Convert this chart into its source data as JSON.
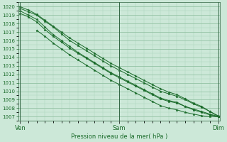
{
  "title": "Pression niveau de la mer( hPa )",
  "xlabel_ticks": [
    "Ven",
    "Sam",
    "Dim"
  ],
  "xlabel_tick_positions": [
    0,
    1,
    2
  ],
  "ylim": [
    1006.5,
    1020.5
  ],
  "yticks": [
    1007,
    1008,
    1009,
    1010,
    1011,
    1012,
    1013,
    1014,
    1015,
    1016,
    1017,
    1018,
    1019,
    1020
  ],
  "bg_color": "#cce8d8",
  "grid_major_color": "#88bb99",
  "grid_minor_color": "#aad4bb",
  "line_color": "#1a6b2a",
  "spine_color": "#336644",
  "figsize": [
    3.2,
    2.0
  ],
  "dpi": 100,
  "series": [
    {
      "x": [
        0.0,
        0.083,
        0.167,
        0.25,
        0.333,
        0.417,
        0.5,
        0.583,
        0.667,
        0.75,
        0.833,
        0.917,
        1.0,
        1.083,
        1.167,
        1.25,
        1.333,
        1.417,
        1.5,
        1.583,
        1.667,
        1.75,
        1.833,
        1.917,
        2.0
      ],
      "y": [
        1019.8,
        1019.4,
        1019.0,
        1018.3,
        1017.6,
        1016.8,
        1016.0,
        1015.4,
        1014.8,
        1014.2,
        1013.6,
        1013.0,
        1012.5,
        1012.0,
        1011.5,
        1011.0,
        1010.5,
        1010.0,
        1009.7,
        1009.4,
        1009.0,
        1008.5,
        1008.1,
        1007.6,
        1007.1
      ]
    },
    {
      "x": [
        0.0,
        0.083,
        0.167,
        0.25,
        0.333,
        0.417,
        0.5,
        0.583,
        0.667,
        0.75,
        0.833,
        0.917,
        1.0,
        1.083,
        1.167,
        1.25,
        1.333,
        1.417,
        1.5,
        1.583,
        1.667,
        1.75,
        1.833,
        1.917,
        2.0
      ],
      "y": [
        1020.0,
        1019.6,
        1019.1,
        1018.4,
        1017.7,
        1017.0,
        1016.3,
        1015.7,
        1015.1,
        1014.5,
        1013.9,
        1013.3,
        1012.8,
        1012.3,
        1011.8,
        1011.3,
        1010.8,
        1010.3,
        1009.9,
        1009.6,
        1009.1,
        1008.6,
        1008.2,
        1007.6,
        1007.0
      ]
    },
    {
      "x": [
        0.0,
        0.083,
        0.167,
        0.25,
        0.333,
        0.417,
        0.5,
        0.583,
        0.667,
        0.75,
        0.833,
        0.917,
        1.0,
        1.083,
        1.167,
        1.25,
        1.333,
        1.417,
        1.5,
        1.583,
        1.667,
        1.75,
        1.833,
        1.917,
        2.0
      ],
      "y": [
        1019.2,
        1018.8,
        1018.2,
        1017.3,
        1016.5,
        1015.8,
        1015.1,
        1014.5,
        1013.9,
        1013.3,
        1012.7,
        1012.1,
        1011.6,
        1011.1,
        1010.6,
        1010.1,
        1009.6,
        1009.1,
        1008.8,
        1008.6,
        1008.2,
        1007.9,
        1007.6,
        1007.3,
        1007.0
      ]
    },
    {
      "x": [
        0.0,
        0.083,
        0.167,
        0.25,
        0.333,
        0.417,
        0.5,
        0.583,
        0.667,
        0.75,
        0.833,
        0.917,
        1.0,
        1.083,
        1.167,
        1.25,
        1.333,
        1.417,
        1.5,
        1.583,
        1.667,
        1.75,
        1.833,
        1.917,
        2.0
      ],
      "y": [
        1019.5,
        1019.0,
        1018.5,
        1017.6,
        1016.7,
        1016.0,
        1015.3,
        1014.6,
        1014.0,
        1013.4,
        1012.8,
        1012.2,
        1011.7,
        1011.2,
        1010.7,
        1010.2,
        1009.7,
        1009.2,
        1008.9,
        1008.7,
        1008.2,
        1007.8,
        1007.5,
        1007.2,
        1007.0
      ]
    },
    {
      "x": [
        0.167,
        0.25,
        0.333,
        0.417,
        0.5,
        0.583,
        0.667,
        0.75,
        0.833,
        0.917,
        1.0,
        1.083,
        1.167,
        1.25,
        1.333,
        1.417,
        1.5,
        1.583,
        1.667,
        1.75,
        1.833,
        1.917,
        2.0
      ],
      "y": [
        1017.2,
        1016.5,
        1015.7,
        1015.0,
        1014.3,
        1013.7,
        1013.1,
        1012.5,
        1011.9,
        1011.3,
        1010.8,
        1010.3,
        1009.8,
        1009.3,
        1008.8,
        1008.3,
        1008.0,
        1007.8,
        1007.5,
        1007.3,
        1007.1,
        1007.0,
        1007.0
      ]
    }
  ]
}
